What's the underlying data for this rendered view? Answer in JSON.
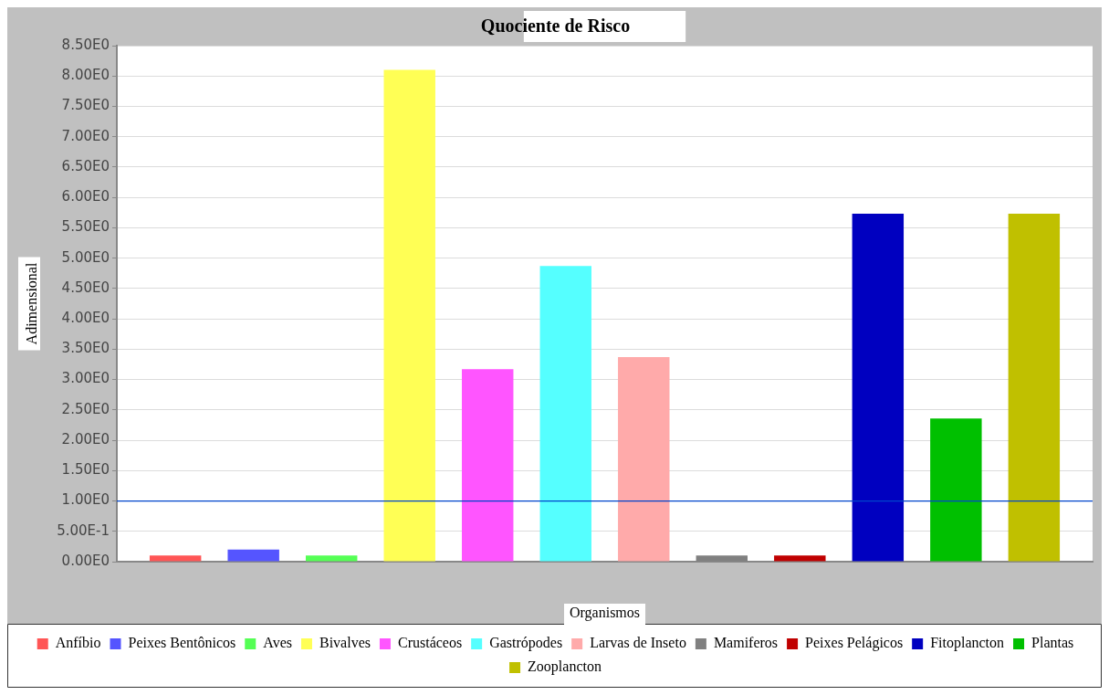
{
  "chart_data": {
    "type": "bar",
    "title": "Quociente de Risco",
    "xlabel": "Organismos",
    "ylabel": "Adimensional",
    "categories": [
      null
    ],
    "series": [
      {
        "name": "Anfíbio",
        "color": "#ff5555",
        "values": [
          0.1
        ]
      },
      {
        "name": "Peixes Bentônicos",
        "color": "#5555ff",
        "values": [
          0.2
        ]
      },
      {
        "name": "Aves",
        "color": "#55ff55",
        "values": [
          0.1
        ]
      },
      {
        "name": "Bivalves",
        "color": "#ffff55",
        "values": [
          8.1
        ]
      },
      {
        "name": "Crustáceos",
        "color": "#ff55ff",
        "values": [
          3.17
        ]
      },
      {
        "name": "Gastrópodes",
        "color": "#55ffff",
        "values": [
          4.87
        ]
      },
      {
        "name": "Larvas de Inseto",
        "color": "#ffaaaa",
        "values": [
          3.37
        ]
      },
      {
        "name": "Mamiferos",
        "color": "#808080",
        "values": [
          0.1
        ]
      },
      {
        "name": "Peixes Pelágicos",
        "color": "#c00000",
        "values": [
          0.1
        ]
      },
      {
        "name": "Fitoplancton",
        "color": "#0000c0",
        "values": [
          5.73
        ]
      },
      {
        "name": "Plantas",
        "color": "#00c000",
        "values": [
          2.36
        ]
      },
      {
        "name": "Zooplancton",
        "color": "#c0c000",
        "values": [
          5.73
        ]
      }
    ],
    "ylim": [
      0,
      8.5
    ],
    "yticks": [
      {
        "value": 0,
        "label": "0.00E0"
      },
      {
        "value": 0.5,
        "label": "5.00E-1"
      },
      {
        "value": 1,
        "label": "1.00E0"
      },
      {
        "value": 1.5,
        "label": "1.50E0"
      },
      {
        "value": 2,
        "label": "2.00E0"
      },
      {
        "value": 2.5,
        "label": "2.50E0"
      },
      {
        "value": 3,
        "label": "3.00E0"
      },
      {
        "value": 3.5,
        "label": "3.50E0"
      },
      {
        "value": 4,
        "label": "4.00E0"
      },
      {
        "value": 4.5,
        "label": "4.50E0"
      },
      {
        "value": 5,
        "label": "5.00E0"
      },
      {
        "value": 5.5,
        "label": "5.50E0"
      },
      {
        "value": 6,
        "label": "6.00E0"
      },
      {
        "value": 6.5,
        "label": "6.50E0"
      },
      {
        "value": 7,
        "label": "7.00E0"
      },
      {
        "value": 7.5,
        "label": "7.50E0"
      },
      {
        "value": 8,
        "label": "8.00E0"
      },
      {
        "value": 8.5,
        "label": "8.50E0"
      }
    ],
    "ref_lines": [
      {
        "axis": "y",
        "value": 1,
        "color": "#0044cc"
      }
    ],
    "grid": "y",
    "legend": "bottom"
  }
}
